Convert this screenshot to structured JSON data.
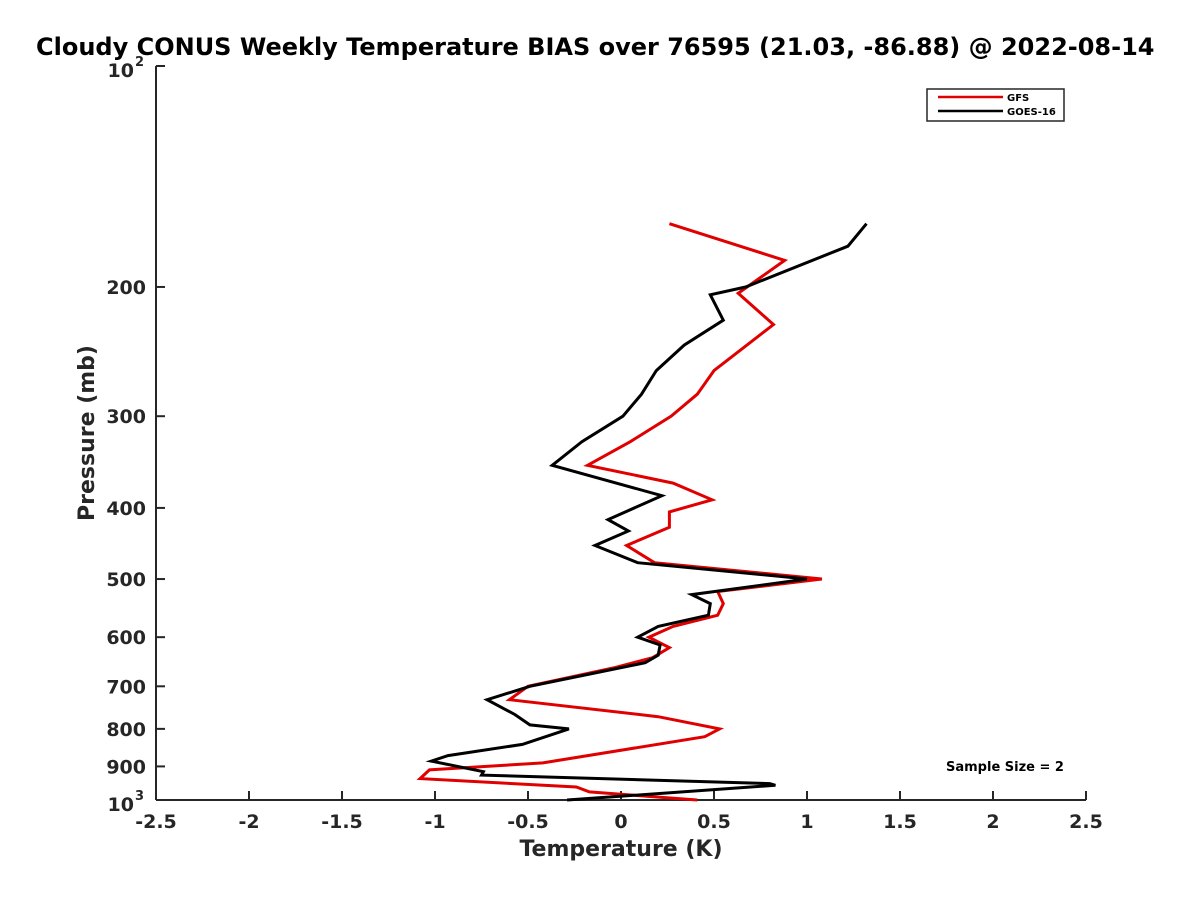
{
  "chart_data": {
    "type": "line",
    "title": "Cloudy CONUS Weekly Temperature BIAS over 76595 (21.03, -86.88) @ 2022-08-14",
    "xlabel": "Temperature (K)",
    "ylabel": "Pressure (mb)",
    "xlim": [
      -2.5,
      2.5
    ],
    "ylim": [
      100,
      1000
    ],
    "yscale": "log",
    "y_reversed": true,
    "x_ticks": [
      -2.5,
      -2,
      -1.5,
      -1,
      -0.5,
      0,
      0.5,
      1,
      1.5,
      2,
      2.5
    ],
    "x_tick_labels": [
      "-2.5",
      "-2",
      "-1.5",
      "-1",
      "-0.5",
      "0",
      "0.5",
      "1",
      "1.5",
      "2",
      "2.5"
    ],
    "y_ticks": [
      200,
      300,
      400,
      500,
      600,
      700,
      800,
      900
    ],
    "y_tick_labels": [
      "200",
      "300",
      "400",
      "500",
      "600",
      "700",
      "800",
      "900"
    ],
    "y_top_label": {
      "base": "10",
      "exp": "2"
    },
    "y_bottom_label": {
      "base": "10",
      "exp": "3"
    },
    "legend_position": "top-right",
    "annotation": "Sample Size = 2",
    "series": [
      {
        "name": "GFS",
        "color": "#e00000",
        "x": [
          0.26,
          0.88,
          0.63,
          0.82,
          0.5,
          0.41,
          0.27,
          0.05,
          -0.18,
          0.28,
          0.49,
          0.26,
          0.26,
          0.03,
          0.18,
          1.08,
          0.52,
          0.55,
          0.52,
          0.28,
          0.15,
          0.26,
          0.17,
          -0.03,
          -0.5,
          -0.6,
          0.2,
          0.53,
          0.45,
          -0.42,
          -1.03,
          -1.08,
          -0.24,
          -0.17,
          0.41
        ],
        "y": [
          164,
          184,
          204,
          225,
          260,
          280,
          300,
          325,
          350,
          370,
          390,
          405,
          425,
          450,
          475,
          500,
          520,
          540,
          560,
          580,
          600,
          620,
          640,
          660,
          700,
          730,
          770,
          800,
          820,
          890,
          910,
          935,
          960,
          975,
          1000
        ]
      },
      {
        "name": "GOES-16",
        "color": "#000000",
        "x": [
          1.32,
          1.22,
          0.67,
          0.48,
          0.55,
          0.34,
          0.19,
          0.11,
          0.01,
          -0.21,
          -0.37,
          0.22,
          -0.07,
          0.04,
          -0.14,
          0.09,
          1.0,
          0.38,
          0.48,
          0.47,
          0.2,
          0.09,
          0.21,
          0.2,
          0.13,
          -0.49,
          -0.72,
          -0.57,
          -0.49,
          -0.28,
          -0.53,
          -0.93,
          -1.02,
          -0.74,
          -0.75,
          0.8,
          0.83,
          -0.29
        ],
        "y": [
          164,
          176,
          200,
          205,
          222,
          240,
          260,
          280,
          300,
          325,
          350,
          385,
          415,
          430,
          450,
          475,
          500,
          525,
          540,
          560,
          580,
          600,
          615,
          635,
          650,
          700,
          730,
          765,
          790,
          800,
          840,
          870,
          885,
          915,
          925,
          950,
          955,
          1000
        ]
      }
    ]
  }
}
